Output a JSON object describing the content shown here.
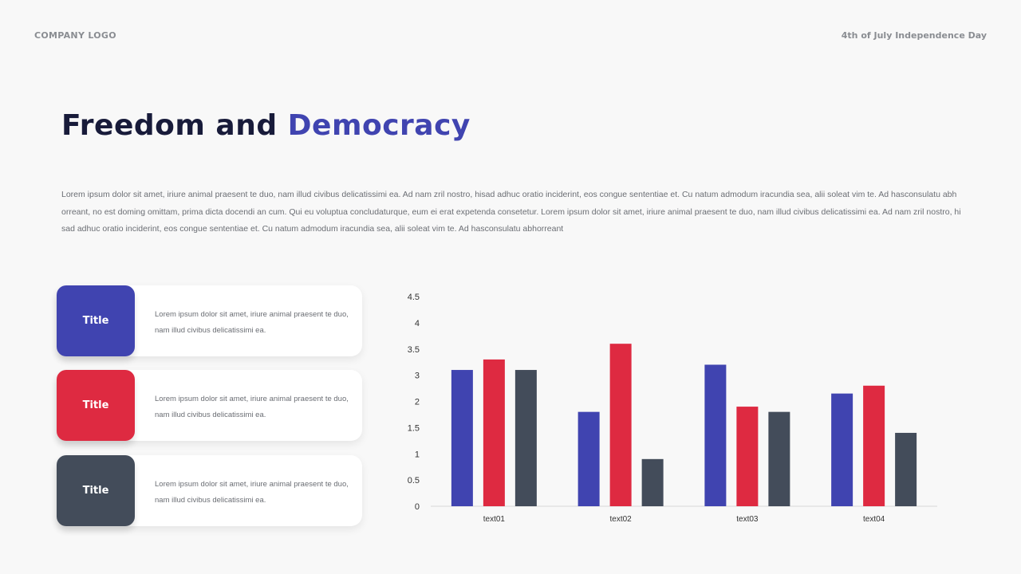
{
  "header": {
    "logo": "COMPANY LOGO",
    "event": "4th of July Independence Day"
  },
  "slide": {
    "title_part1": "Freedom and ",
    "title_part2": "Democracy",
    "body": "Lorem ipsum dolor sit amet, iriure animal praesent te duo, nam illud civibus delicatissimi ea. Ad nam zril nostro, hisad adhuc oratio inciderint, eos congue sententiae et. Cu natum admodum iracundia sea, alii soleat vim te. Ad hasconsulatu abhorreant, no est doming omittam, prima dicta docendi an cum. Qui eu voluptua concludaturque, eum ei erat expetenda consetetur. Lorem ipsum dolor sit amet, iriure animal praesent te duo, nam illud civibus delicatissimi ea. Ad nam zril nostro, hisad adhuc oratio inciderint, eos congue sententiae et. Cu natum admodum iracundia sea, alii soleat vim te. Ad hasconsulatu abhorreant"
  },
  "cards": [
    {
      "title": "Title",
      "text": "Lorem ipsum dolor sit amet, iriure animal praesent te duo, nam illud civibus delicatissimi ea.",
      "color": "#4044b0"
    },
    {
      "title": "Title",
      "text": "Lorem ipsum dolor sit amet, iriure animal praesent te duo, nam illud civibus delicatissimi ea.",
      "color": "#de2a41"
    },
    {
      "title": "Title",
      "text": "Lorem ipsum dolor sit amet, iriure animal praesent te duo, nam illud civibus delicatissimi ea.",
      "color": "#434c5a"
    }
  ],
  "chart_data": {
    "type": "bar",
    "categories": [
      "text01",
      "text02",
      "text03",
      "text04"
    ],
    "y_tick_labels": [
      "0",
      "0.5",
      "1",
      "1.5",
      "2",
      "3",
      "3.5",
      "4",
      "4.5"
    ],
    "series": [
      {
        "values": [
          3.1,
          1.8,
          3.2,
          2.3
        ],
        "color": "#4044b0"
      },
      {
        "values": [
          3.3,
          3.6,
          1.9,
          2.6
        ],
        "color": "#de2a41"
      },
      {
        "values": [
          3.1,
          0.9,
          1.8,
          1.4
        ],
        "color": "#434c5a"
      }
    ]
  }
}
